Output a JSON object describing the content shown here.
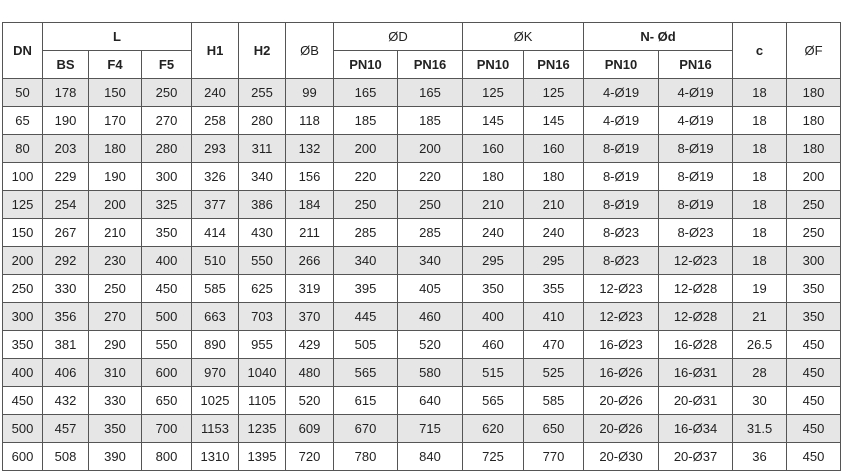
{
  "header": {
    "dn": "DN",
    "l": "L",
    "bs": "BS",
    "f4": "F4",
    "f5": "F5",
    "h1": "H1",
    "h2": "H2",
    "b": "ØB",
    "d": "ØD",
    "k": "ØK",
    "nd": "N- Ød",
    "c": "c",
    "f": "ØF",
    "pn10": "PN10",
    "pn16": "PN16"
  },
  "rows": [
    [
      "50",
      "178",
      "150",
      "250",
      "240",
      "255",
      "99",
      "165",
      "165",
      "125",
      "125",
      "4-Ø19",
      "4-Ø19",
      "18",
      "180"
    ],
    [
      "65",
      "190",
      "170",
      "270",
      "258",
      "280",
      "118",
      "185",
      "185",
      "145",
      "145",
      "4-Ø19",
      "4-Ø19",
      "18",
      "180"
    ],
    [
      "80",
      "203",
      "180",
      "280",
      "293",
      "311",
      "132",
      "200",
      "200",
      "160",
      "160",
      "8-Ø19",
      "8-Ø19",
      "18",
      "180"
    ],
    [
      "100",
      "229",
      "190",
      "300",
      "326",
      "340",
      "156",
      "220",
      "220",
      "180",
      "180",
      "8-Ø19",
      "8-Ø19",
      "18",
      "200"
    ],
    [
      "125",
      "254",
      "200",
      "325",
      "377",
      "386",
      "184",
      "250",
      "250",
      "210",
      "210",
      "8-Ø19",
      "8-Ø19",
      "18",
      "250"
    ],
    [
      "150",
      "267",
      "210",
      "350",
      "414",
      "430",
      "211",
      "285",
      "285",
      "240",
      "240",
      "8-Ø23",
      "8-Ø23",
      "18",
      "250"
    ],
    [
      "200",
      "292",
      "230",
      "400",
      "510",
      "550",
      "266",
      "340",
      "340",
      "295",
      "295",
      "8-Ø23",
      "12-Ø23",
      "18",
      "300"
    ],
    [
      "250",
      "330",
      "250",
      "450",
      "585",
      "625",
      "319",
      "395",
      "405",
      "350",
      "355",
      "12-Ø23",
      "12-Ø28",
      "19",
      "350"
    ],
    [
      "300",
      "356",
      "270",
      "500",
      "663",
      "703",
      "370",
      "445",
      "460",
      "400",
      "410",
      "12-Ø23",
      "12-Ø28",
      "21",
      "350"
    ],
    [
      "350",
      "381",
      "290",
      "550",
      "890",
      "955",
      "429",
      "505",
      "520",
      "460",
      "470",
      "16-Ø23",
      "16-Ø28",
      "26.5",
      "450"
    ],
    [
      "400",
      "406",
      "310",
      "600",
      "970",
      "1040",
      "480",
      "565",
      "580",
      "515",
      "525",
      "16-Ø26",
      "16-Ø31",
      "28",
      "450"
    ],
    [
      "450",
      "432",
      "330",
      "650",
      "1025",
      "1105",
      "520",
      "615",
      "640",
      "565",
      "585",
      "20-Ø26",
      "20-Ø31",
      "30",
      "450"
    ],
    [
      "500",
      "457",
      "350",
      "700",
      "1153",
      "1235",
      "609",
      "670",
      "715",
      "620",
      "650",
      "20-Ø26",
      "16-Ø34",
      "31.5",
      "450"
    ],
    [
      "600",
      "508",
      "390",
      "800",
      "1310",
      "1395",
      "720",
      "780",
      "840",
      "725",
      "770",
      "20-Ø30",
      "20-Ø37",
      "36",
      "450"
    ]
  ]
}
